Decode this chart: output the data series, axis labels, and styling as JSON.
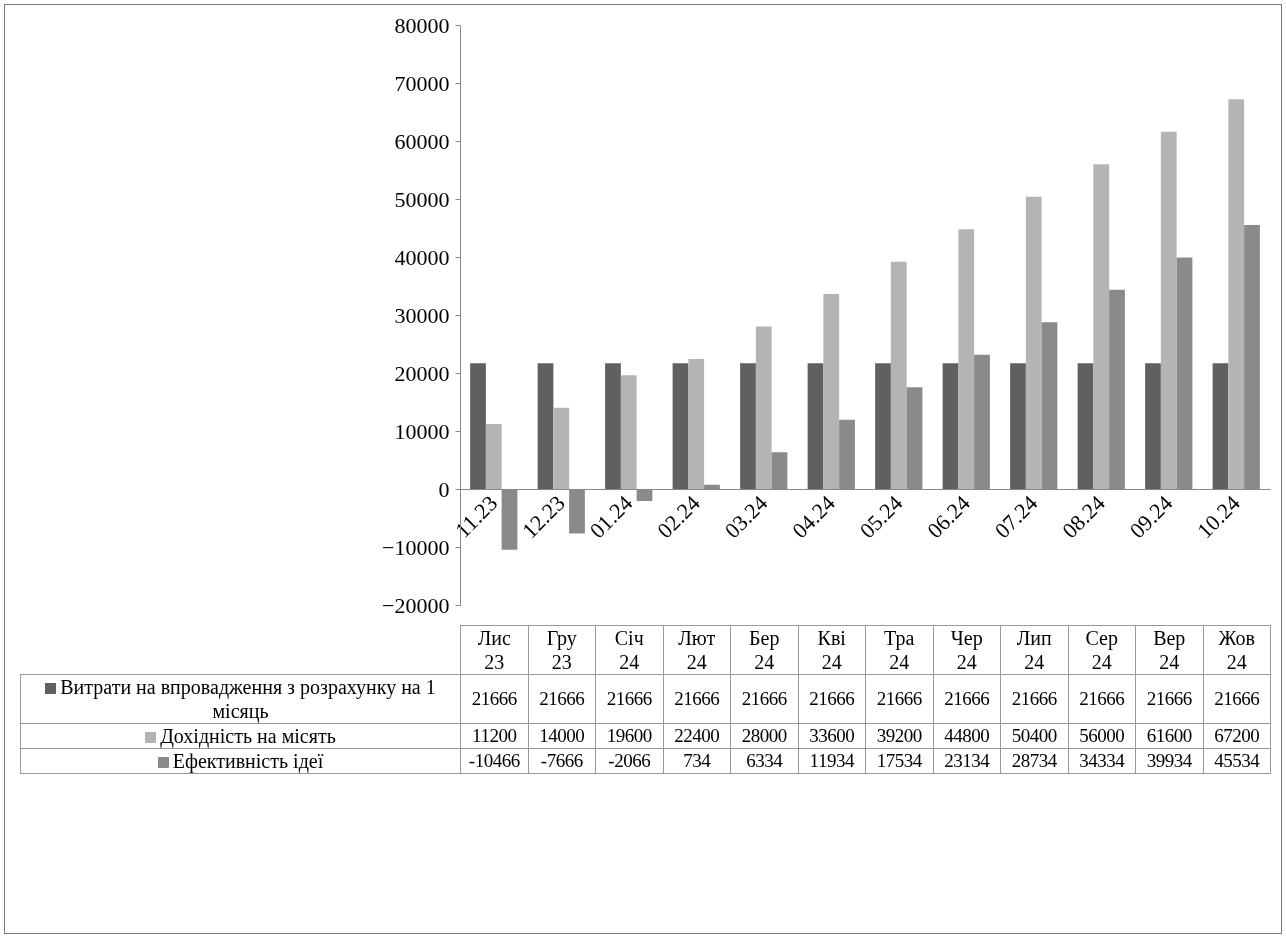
{
  "chart_data": {
    "type": "bar",
    "categories": [
      "11.23",
      "12.23",
      "01.24",
      "02.24",
      "03.24",
      "04.24",
      "05.24",
      "06.24",
      "07.24",
      "08.24",
      "09.24",
      "10.24"
    ],
    "series": [
      {
        "name": "Витрати на впровадження з розрахунку на 1 місяць",
        "color": "#606060",
        "values": [
          21666,
          21666,
          21666,
          21666,
          21666,
          21666,
          21666,
          21666,
          21666,
          21666,
          21666,
          21666
        ]
      },
      {
        "name": "Дохідність на місять",
        "color": "#b4b4b4",
        "values": [
          11200,
          14000,
          19600,
          22400,
          28000,
          33600,
          39200,
          44800,
          50400,
          56000,
          61600,
          67200
        ]
      },
      {
        "name": "Ефективність ідеї",
        "color": "#8a8a8a",
        "values": [
          -10466,
          -7666,
          -2066,
          734,
          6334,
          11934,
          17534,
          23134,
          28734,
          34334,
          39934,
          45534
        ]
      }
    ],
    "annotations": [
      "Лис 23",
      "Гру 23",
      "Січ 24",
      "Лют 24",
      "Бер 24",
      "Кві 24",
      "Тра 24",
      "Чер 24",
      "Лип 24",
      "Сер 24",
      "Вер 24",
      "Жов 24"
    ],
    "ylim": [
      -20000,
      80000
    ],
    "yticks": [
      -20000,
      -10000,
      0,
      10000,
      20000,
      30000,
      40000,
      50000,
      60000,
      70000,
      80000
    ],
    "grid": false,
    "legend": "bottom",
    "data_labels": true
  }
}
